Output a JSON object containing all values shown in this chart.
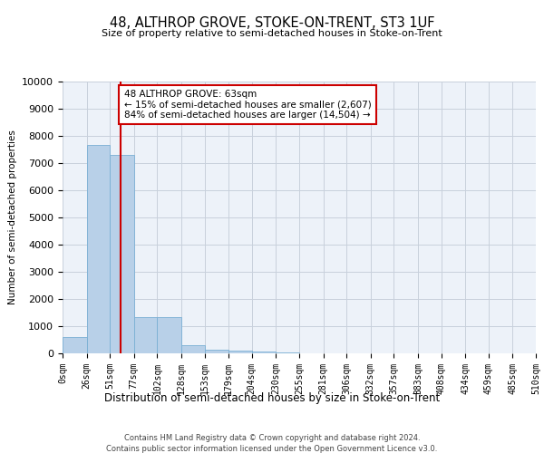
{
  "title": "48, ALTHROP GROVE, STOKE-ON-TRENT, ST3 1UF",
  "subtitle": "Size of property relative to semi-detached houses in Stoke-on-Trent",
  "xlabel": "Distribution of semi-detached houses by size in Stoke-on-Trent",
  "ylabel": "Number of semi-detached properties",
  "footer1": "Contains HM Land Registry data © Crown copyright and database right 2024.",
  "footer2": "Contains public sector information licensed under the Open Government Licence v3.0.",
  "annotation_line1": "48 ALTHROP GROVE: 63sqm",
  "annotation_line2": "← 15% of semi-detached houses are smaller (2,607)",
  "annotation_line3": "84% of semi-detached houses are larger (14,504) →",
  "property_size": 63,
  "bin_edges": [
    0,
    26,
    51,
    77,
    102,
    128,
    153,
    179,
    204,
    230,
    255,
    281,
    306,
    332,
    357,
    383,
    408,
    434,
    459,
    485,
    510
  ],
  "bin_counts": [
    600,
    7650,
    7300,
    1350,
    1350,
    300,
    140,
    100,
    70,
    50,
    0,
    0,
    0,
    0,
    0,
    0,
    0,
    0,
    0,
    0
  ],
  "bar_color": "#b8d0e8",
  "bar_edge_color": "#7aafd4",
  "vline_color": "#cc0000",
  "annotation_box_edge_color": "#cc0000",
  "grid_color": "#c8d0dc",
  "background_color": "#edf2f9",
  "ylim": [
    0,
    10000
  ],
  "yticks": [
    0,
    1000,
    2000,
    3000,
    4000,
    5000,
    6000,
    7000,
    8000,
    9000,
    10000
  ],
  "tick_labels": [
    "0sqm",
    "26sqm",
    "51sqm",
    "77sqm",
    "102sqm",
    "128sqm",
    "153sqm",
    "179sqm",
    "204sqm",
    "230sqm",
    "255sqm",
    "281sqm",
    "306sqm",
    "332sqm",
    "357sqm",
    "383sqm",
    "408sqm",
    "434sqm",
    "459sqm",
    "485sqm",
    "510sqm"
  ]
}
